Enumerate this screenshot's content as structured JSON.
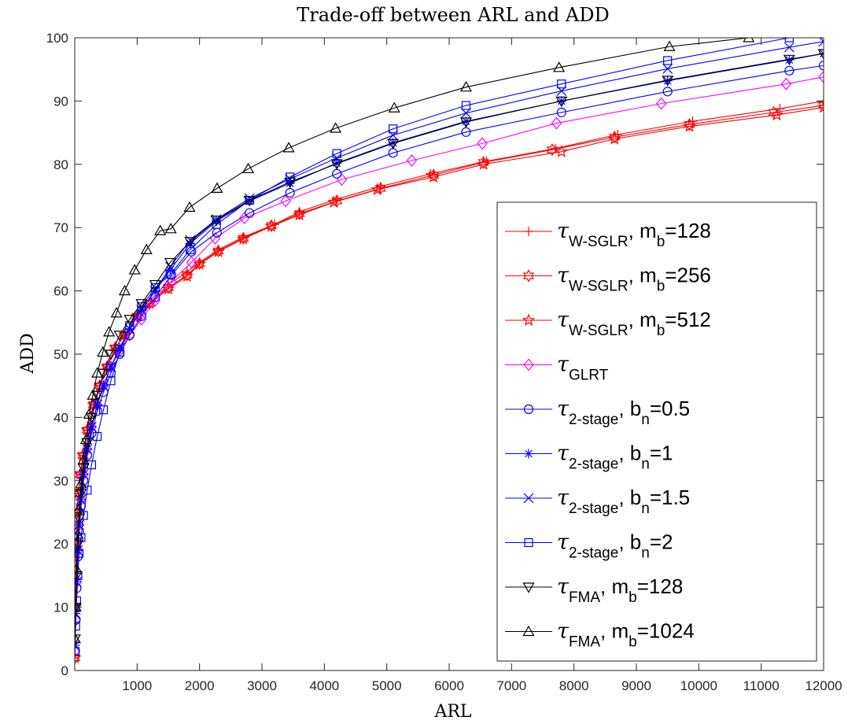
{
  "chart_data": {
    "type": "line",
    "title": "Trade-off between ARL and ADD",
    "xlabel": "ARL",
    "ylabel": "ADD",
    "xlim": [
      0,
      12000
    ],
    "ylim": [
      0,
      100
    ],
    "xticks": [
      1000,
      2000,
      3000,
      4000,
      5000,
      6000,
      7000,
      8000,
      9000,
      10000,
      11000,
      12000
    ],
    "yticks": [
      0,
      10,
      20,
      30,
      40,
      50,
      60,
      70,
      80,
      90,
      100
    ],
    "grid": false,
    "legend_position": "bottom-right",
    "series": [
      {
        "name": "τW-SGLR, mb=128",
        "legend": {
          "sym": "τ",
          "sub": "W-SGLR",
          "tail": ", m",
          "tailSub": "b",
          "tail2": "=128"
        },
        "color": "#ff0000",
        "marker": "plus",
        "x": [
          2,
          10,
          25,
          40,
          60,
          90,
          130,
          200,
          300,
          400,
          520,
          650,
          800,
          1000,
          1200,
          1500,
          1800,
          2000,
          2300,
          2700,
          3200,
          3600,
          4200,
          4900,
          5700,
          6600,
          7700,
          8700,
          9900,
          11300,
          12000
        ],
        "y": [
          2,
          10,
          20,
          25,
          28,
          31,
          34,
          38,
          42,
          45,
          48,
          51,
          53,
          56,
          58,
          61,
          63,
          64.5,
          66.5,
          68.5,
          70.5,
          72.5,
          74.5,
          76.5,
          78.5,
          80.5,
          82.5,
          84.7,
          86.8,
          88.8,
          90
        ]
      },
      {
        "name": "τW-SGLR, mb=256",
        "legend": {
          "sym": "τ",
          "sub": "W-SGLR",
          "tail": ", m",
          "tailSub": "b",
          "tail2": "=256"
        },
        "color": "#ff0000",
        "marker": "hexagram",
        "x": [
          2,
          10,
          25,
          40,
          60,
          90,
          130,
          200,
          300,
          400,
          520,
          650,
          800,
          1000,
          1200,
          1500,
          1800,
          2000,
          2300,
          2700,
          3150,
          3600,
          4200,
          4900,
          5750,
          6550,
          7650,
          8650,
          9850,
          11200,
          12000
        ],
        "y": [
          2,
          10,
          20,
          25,
          28,
          31,
          34,
          38,
          42,
          45,
          48,
          51,
          53,
          56,
          58,
          60.5,
          62.5,
          64.3,
          66.3,
          68.3,
          70.3,
          72.2,
          74.2,
          76.2,
          78.3,
          80.3,
          82.3,
          84.3,
          86.3,
          88.2,
          89.3
        ]
      },
      {
        "name": "τW-SGLR, mb=512",
        "legend": {
          "sym": "τ",
          "sub": "W-SGLR",
          "tail": ", m",
          "tailSub": "b",
          "tail2": "=512"
        },
        "color": "#ff0000",
        "marker": "pentagram",
        "x": [
          2,
          10,
          25,
          40,
          60,
          90,
          130,
          200,
          300,
          400,
          520,
          650,
          800,
          1000,
          1200,
          1500,
          1800,
          2000,
          2300,
          2700,
          3150,
          3600,
          4150,
          4850,
          5750,
          6550,
          7800,
          8650,
          9850,
          11250,
          12000
        ],
        "y": [
          2,
          10,
          20,
          25,
          28,
          31,
          34,
          38,
          42,
          45,
          48,
          51,
          53,
          56,
          58,
          60.3,
          62.3,
          64.2,
          66.2,
          68.2,
          70.2,
          72,
          74,
          76,
          78,
          80,
          82,
          84,
          86,
          87.8,
          89
        ]
      },
      {
        "name": "τGLRT",
        "legend": {
          "sym": "τ",
          "sub": "GLRT",
          "tail": "",
          "tailSub": "",
          "tail2": ""
        },
        "color": "#ff00ff",
        "marker": "diamond",
        "x": [
          5,
          15,
          30,
          50,
          70,
          100,
          140,
          200,
          270,
          360,
          460,
          580,
          720,
          880,
          1070,
          1290,
          1550,
          1870,
          2250,
          2720,
          3380,
          4280,
          5400,
          6530,
          7720,
          9400,
          11400,
          12000
        ],
        "y": [
          3,
          8,
          14,
          19,
          23,
          27,
          31,
          35,
          38.5,
          42,
          45,
          48,
          50.5,
          53,
          55.5,
          58.5,
          61.5,
          64.5,
          68.3,
          71.5,
          74.2,
          77.6,
          80.6,
          83.3,
          86.5,
          89.6,
          92.7,
          93.8
        ]
      },
      {
        "name": "τ2-stage, bn=0.5",
        "legend": {
          "sym": "τ",
          "sub": "2-stage",
          "tail": ", b",
          "tailSub": "n",
          "tail2": "=0.5"
        },
        "color": "#0000ff",
        "marker": "circle",
        "x": [
          5,
          15,
          30,
          50,
          70,
          100,
          140,
          200,
          270,
          360,
          460,
          580,
          720,
          880,
          1070,
          1290,
          1550,
          1870,
          2280,
          2800,
          3450,
          4200,
          5100,
          6270,
          7800,
          9500,
          11450,
          12000
        ],
        "y": [
          3,
          8,
          13,
          18,
          22,
          26,
          30,
          34,
          37.5,
          41,
          44,
          47,
          50,
          53,
          56,
          59,
          62.5,
          66.2,
          69.2,
          72.3,
          75.5,
          78.5,
          81.8,
          85.1,
          88.2,
          91.5,
          94.8,
          95.6
        ]
      },
      {
        "name": "τ2-stage, bn=1",
        "legend": {
          "sym": "τ",
          "sub": "2-stage",
          "tail": ", b",
          "tailSub": "n",
          "tail2": "=1"
        },
        "color": "#0000ff",
        "marker": "asterisk",
        "x": [
          5,
          15,
          30,
          50,
          70,
          100,
          140,
          200,
          270,
          360,
          460,
          580,
          720,
          880,
          1070,
          1290,
          1530,
          1850,
          2270,
          2800,
          3450,
          4200,
          5100,
          6270,
          7800,
          9500,
          11450,
          12000
        ],
        "y": [
          4,
          9,
          14,
          19,
          23,
          27,
          31,
          35,
          38.5,
          42,
          45,
          48,
          51,
          54,
          57,
          60,
          63.3,
          67.5,
          71,
          74.2,
          77,
          80.2,
          83.4,
          86.8,
          90,
          93.2,
          96.5,
          97.5
        ]
      },
      {
        "name": "τ2-stage, bn=1.5",
        "legend": {
          "sym": "τ",
          "sub": "2-stage",
          "tail": ", b",
          "tailSub": "n",
          "tail2": "=1.5"
        },
        "color": "#0000ff",
        "marker": "cross",
        "x": [
          5,
          15,
          30,
          50,
          70,
          100,
          140,
          200,
          270,
          360,
          460,
          580,
          720,
          880,
          1070,
          1290,
          1530,
          1850,
          2270,
          2800,
          3450,
          4200,
          5100,
          6270,
          7800,
          9500,
          11450,
          12000
        ],
        "y": [
          4,
          9,
          14,
          19,
          23,
          27,
          31,
          35,
          38.5,
          42,
          45,
          48,
          51,
          54,
          57,
          60,
          63.8,
          68,
          71.3,
          74.6,
          77.7,
          81,
          84.6,
          88.1,
          91.6,
          95.1,
          98.5,
          99.4
        ]
      },
      {
        "name": "τ2-stage, bn=2",
        "legend": {
          "sym": "τ",
          "sub": "2-stage",
          "tail": ", b",
          "tailSub": "n",
          "tail2": "=2"
        },
        "color": "#0000ff",
        "marker": "square",
        "x": [
          5,
          15,
          30,
          50,
          70,
          100,
          140,
          200,
          270,
          360,
          460,
          580,
          720,
          880,
          1070,
          1290,
          1530,
          1850,
          2270,
          2800,
          3450,
          4200,
          5100,
          6270,
          7800,
          9500,
          11450,
          12000
        ],
        "y": [
          3,
          7,
          11,
          15,
          18.5,
          21,
          24.5,
          28.5,
          32.5,
          37,
          41.2,
          45.8,
          50.3,
          54.5,
          57.5,
          60.5,
          62.6,
          66.5,
          70.5,
          74.3,
          78,
          81.7,
          85.6,
          89.3,
          92.7,
          96.4,
          100,
          100.6
        ]
      },
      {
        "name": "τFMA, mb=128",
        "legend": {
          "sym": "τ",
          "sub": "FMA",
          "tail": ", m",
          "tailSub": "b",
          "tail2": "=128"
        },
        "color": "#000000",
        "marker": "triangle-down",
        "x": [
          5,
          15,
          30,
          50,
          70,
          100,
          140,
          200,
          270,
          360,
          460,
          580,
          720,
          880,
          1070,
          1290,
          1530,
          1850,
          2270,
          2800,
          3450,
          4200,
          5100,
          6270,
          7800,
          9500,
          11450,
          12000
        ],
        "y": [
          5,
          10,
          15,
          20,
          24,
          28,
          32,
          36,
          40,
          43.5,
          47,
          50,
          53,
          55.5,
          58,
          61,
          64.5,
          67.8,
          71.2,
          74.3,
          77.2,
          80.1,
          83.3,
          86.7,
          90,
          93.3,
          96.6,
          97.5
        ]
      },
      {
        "name": "τFMA, mb=1024",
        "legend": {
          "sym": "τ",
          "sub": "FMA",
          "tail": ", m",
          "tailSub": "b",
          "tail2": "=1024"
        },
        "color": "#000000",
        "marker": "triangle-up",
        "x": [
          5,
          15,
          30,
          50,
          70,
          100,
          140,
          180,
          230,
          290,
          360,
          450,
          550,
          670,
          800,
          960,
          1150,
          1370,
          1540,
          1840,
          2280,
          2780,
          3430,
          4180,
          5120,
          6270,
          7760,
          9530,
          10800
        ],
        "y": [
          5,
          10,
          16,
          21.5,
          25.5,
          29.5,
          33.3,
          36.5,
          40.5,
          43.5,
          47,
          50.3,
          53.5,
          56.5,
          60,
          63.3,
          66.5,
          69.5,
          69.8,
          73.2,
          76.2,
          79.3,
          82.6,
          85.7,
          88.9,
          92.2,
          95.3,
          98.6,
          100
        ]
      }
    ]
  }
}
